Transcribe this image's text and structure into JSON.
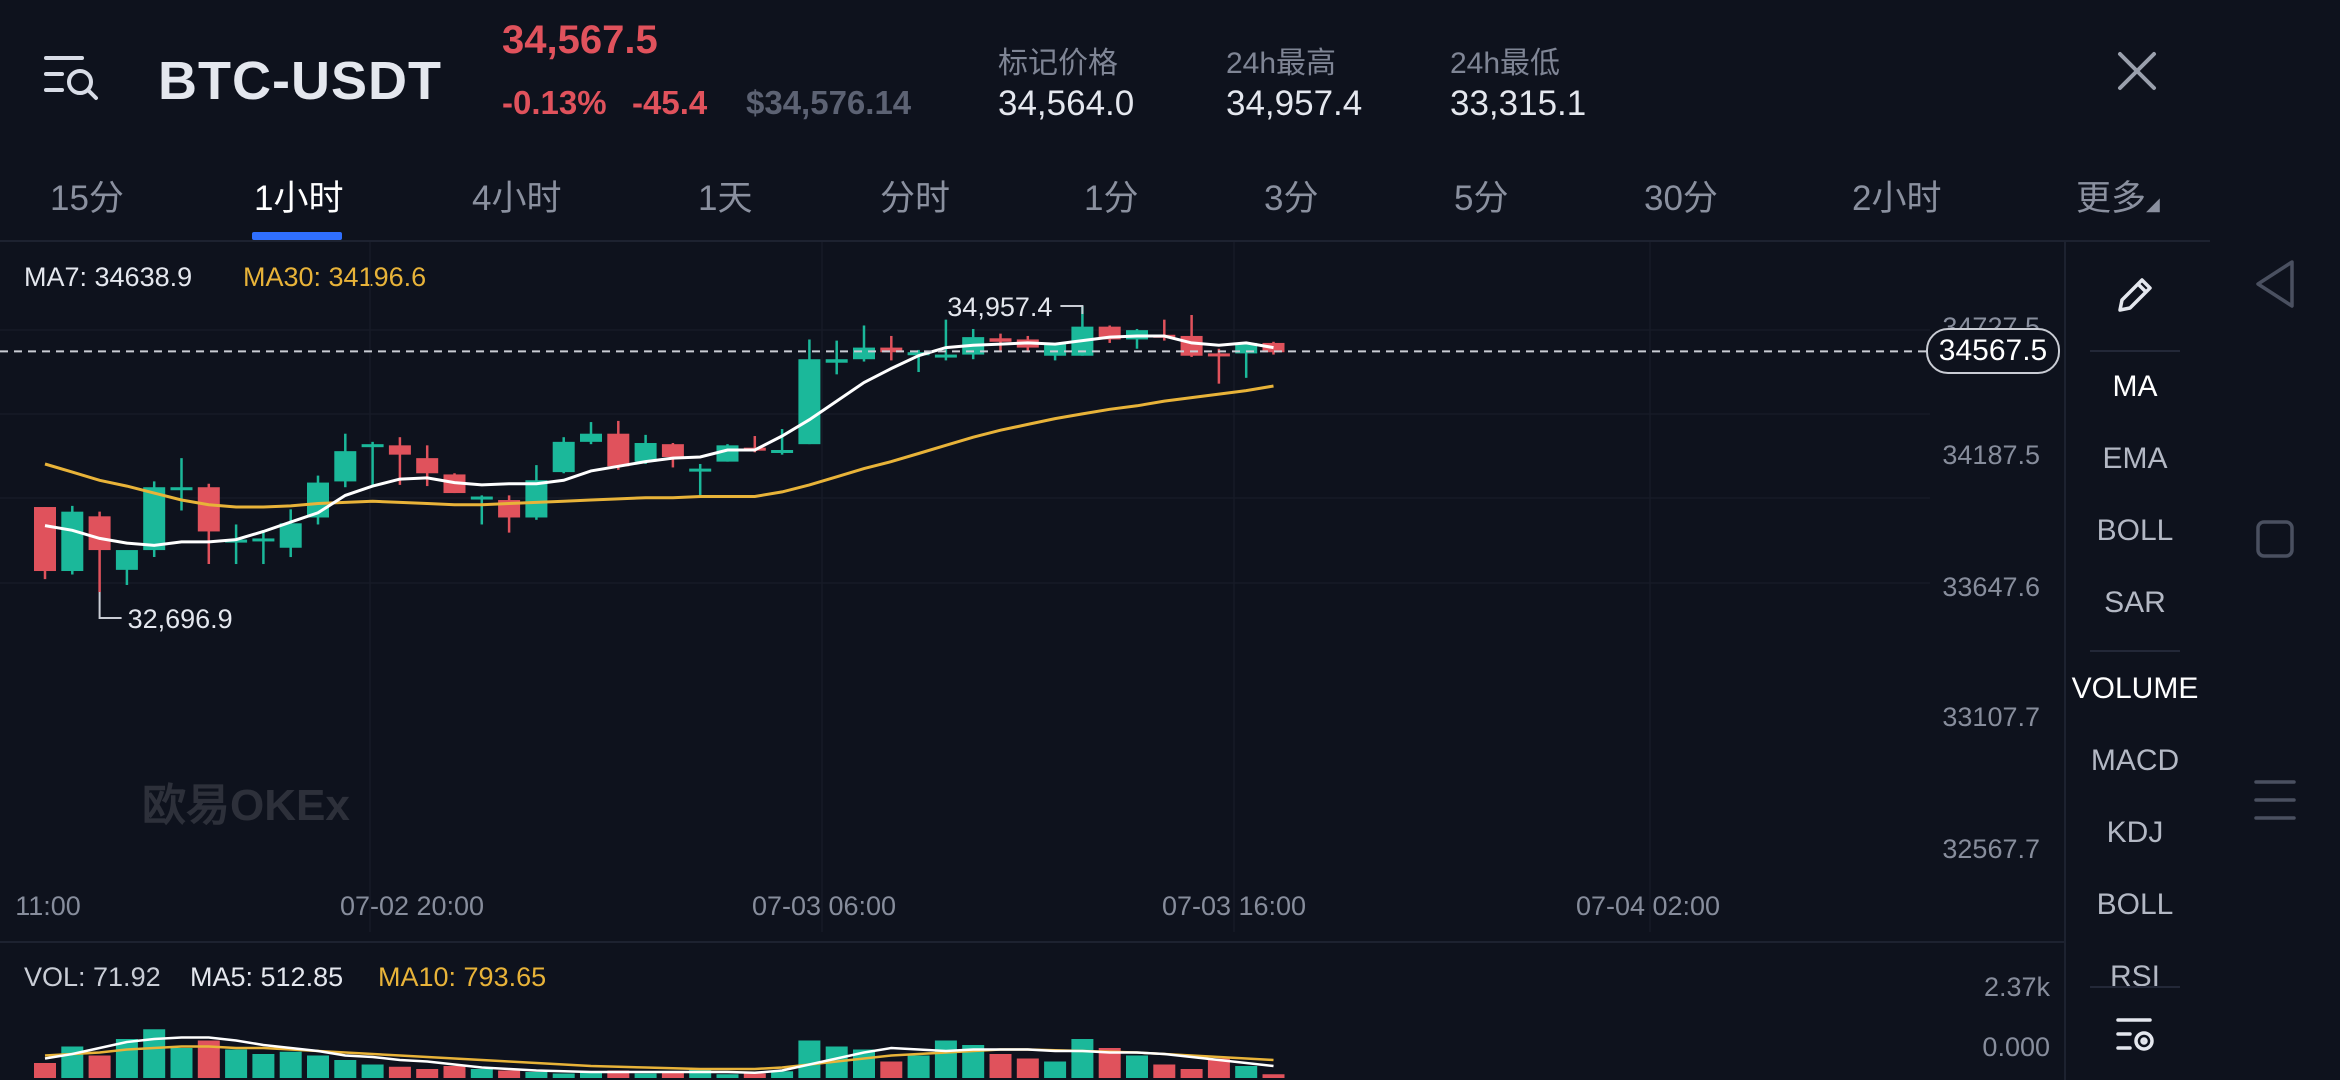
{
  "header": {
    "pair": "BTC-USDT",
    "last_price": "34,567.5",
    "change_pct": "-0.13%",
    "change_abs": "-45.4",
    "usd_price": "$34,576.14",
    "mark_label": "标记价格",
    "mark_value": "34,564.0",
    "high_label": "24h最高",
    "high_value": "34,957.4",
    "low_label": "24h最低",
    "low_value": "33,315.1"
  },
  "tabs": [
    "15分",
    "1小时",
    "4小时",
    "1天",
    "分时",
    "1分",
    "3分",
    "5分",
    "30分",
    "2小时",
    "更多"
  ],
  "active_tab": 1,
  "indicators": {
    "ma7": "MA7: 34638.9",
    "ma30": "MA30: 34196.6",
    "vol": "VOL: 71.92",
    "ma5": "MA5: 512.85",
    "ma10": "MA10: 793.65"
  },
  "chart_data": {
    "type": "candlestick",
    "y_ticks": [
      "34727.5",
      "34187.5",
      "33647.6",
      "33107.7",
      "32567.7"
    ],
    "x_ticks": [
      "11:00",
      "07-02 20:00",
      "07-03 06:00",
      "07-03 16:00",
      "07-04 02:00"
    ],
    "current_price_tag": "34567.5",
    "high_annotation": "34,957.4",
    "low_annotation": "32,696.9",
    "watermark": "欧易OKEx",
    "ylim": [
      32400,
      35150
    ],
    "candles": [
      {
        "o": 33230,
        "h": 33230,
        "l": 32610,
        "c": 32680
      },
      {
        "o": 32680,
        "h": 33240,
        "l": 32650,
        "c": 33190
      },
      {
        "o": 33150,
        "h": 33190,
        "l": 32500,
        "c": 32860
      },
      {
        "o": 32690,
        "h": 32850,
        "l": 32560,
        "c": 32860
      },
      {
        "o": 32860,
        "h": 33450,
        "l": 32800,
        "c": 33400
      },
      {
        "o": 33400,
        "h": 33650,
        "l": 33200,
        "c": 33400
      },
      {
        "o": 33400,
        "h": 33430,
        "l": 32740,
        "c": 33020
      },
      {
        "o": 32930,
        "h": 33080,
        "l": 32740,
        "c": 32950
      },
      {
        "o": 32950,
        "h": 33030,
        "l": 32740,
        "c": 32960
      },
      {
        "o": 32880,
        "h": 33210,
        "l": 32800,
        "c": 33090
      },
      {
        "o": 33140,
        "h": 33500,
        "l": 33080,
        "c": 33440
      },
      {
        "o": 33450,
        "h": 33860,
        "l": 33400,
        "c": 33710
      },
      {
        "o": 33770,
        "h": 33790,
        "l": 33400,
        "c": 33770
      },
      {
        "o": 33760,
        "h": 33830,
        "l": 33420,
        "c": 33680
      },
      {
        "o": 33650,
        "h": 33760,
        "l": 33410,
        "c": 33520
      },
      {
        "o": 33510,
        "h": 33520,
        "l": 33350,
        "c": 33350
      },
      {
        "o": 33310,
        "h": 33330,
        "l": 33080,
        "c": 33320
      },
      {
        "o": 33290,
        "h": 33330,
        "l": 33010,
        "c": 33140
      },
      {
        "o": 33140,
        "h": 33590,
        "l": 33120,
        "c": 33460
      },
      {
        "o": 33530,
        "h": 33830,
        "l": 33520,
        "c": 33790
      },
      {
        "o": 33790,
        "h": 33960,
        "l": 33770,
        "c": 33860
      },
      {
        "o": 33860,
        "h": 33970,
        "l": 33550,
        "c": 33580
      },
      {
        "o": 33620,
        "h": 33850,
        "l": 33600,
        "c": 33780
      },
      {
        "o": 33770,
        "h": 33780,
        "l": 33570,
        "c": 33660
      },
      {
        "o": 33560,
        "h": 33600,
        "l": 33320,
        "c": 33560
      },
      {
        "o": 33620,
        "h": 33770,
        "l": 33620,
        "c": 33760
      },
      {
        "o": 33740,
        "h": 33840,
        "l": 33700,
        "c": 33720
      },
      {
        "o": 33720,
        "h": 33900,
        "l": 33680,
        "c": 33720
      },
      {
        "o": 33770,
        "h": 34670,
        "l": 33770,
        "c": 34500
      },
      {
        "o": 34470,
        "h": 34660,
        "l": 34370,
        "c": 34500
      },
      {
        "o": 34500,
        "h": 34790,
        "l": 34480,
        "c": 34600
      },
      {
        "o": 34600,
        "h": 34700,
        "l": 34490,
        "c": 34560
      },
      {
        "o": 34550,
        "h": 34580,
        "l": 34390,
        "c": 34560
      },
      {
        "o": 34520,
        "h": 34840,
        "l": 34490,
        "c": 34540
      },
      {
        "o": 34540,
        "h": 34760,
        "l": 34500,
        "c": 34690
      },
      {
        "o": 34680,
        "h": 34720,
        "l": 34570,
        "c": 34650
      },
      {
        "o": 34670,
        "h": 34700,
        "l": 34560,
        "c": 34600
      },
      {
        "o": 34530,
        "h": 34630,
        "l": 34490,
        "c": 34630
      },
      {
        "o": 34530,
        "h": 34957,
        "l": 34530,
        "c": 34780
      },
      {
        "o": 34780,
        "h": 34790,
        "l": 34640,
        "c": 34670
      },
      {
        "o": 34670,
        "h": 34760,
        "l": 34590,
        "c": 34750
      },
      {
        "o": 34710,
        "h": 34840,
        "l": 34660,
        "c": 34700
      },
      {
        "o": 34700,
        "h": 34880,
        "l": 34520,
        "c": 34530
      },
      {
        "o": 34550,
        "h": 34590,
        "l": 34290,
        "c": 34540
      },
      {
        "o": 34550,
        "h": 34650,
        "l": 34340,
        "c": 34640
      },
      {
        "o": 34640,
        "h": 34650,
        "l": 34540,
        "c": 34560
      }
    ],
    "ma7": [
      33070,
      33030,
      32960,
      32920,
      32900,
      32930,
      32930,
      32950,
      33020,
      33100,
      33180,
      33330,
      33410,
      33470,
      33480,
      33440,
      33420,
      33430,
      33430,
      33460,
      33540,
      33580,
      33620,
      33650,
      33660,
      33720,
      33720,
      33840,
      33980,
      34140,
      34300,
      34420,
      34530,
      34600,
      34620,
      34630,
      34640,
      34630,
      34660,
      34690,
      34700,
      34700,
      34640,
      34620,
      34640,
      34600
    ],
    "ma30": [
      33600,
      33530,
      33460,
      33410,
      33350,
      33290,
      33250,
      33230,
      33230,
      33240,
      33260,
      33270,
      33280,
      33270,
      33260,
      33250,
      33250,
      33260,
      33270,
      33280,
      33290,
      33300,
      33310,
      33310,
      33320,
      33320,
      33320,
      33360,
      33420,
      33490,
      33560,
      33620,
      33690,
      33760,
      33830,
      33890,
      33940,
      33990,
      34030,
      34070,
      34100,
      34140,
      34170,
      34200,
      34230,
      34270
    ],
    "volume": {
      "ylim_top": "2.37k",
      "zero": "0.000",
      "bars": [
        0.2,
        0.42,
        0.3,
        0.52,
        0.65,
        0.4,
        0.5,
        0.38,
        0.32,
        0.35,
        0.3,
        0.24,
        0.18,
        0.15,
        0.12,
        0.16,
        0.12,
        0.1,
        0.08,
        0.06,
        0.08,
        0.1,
        0.06,
        0.08,
        0.12,
        0.05,
        0.06,
        0.09,
        0.5,
        0.42,
        0.38,
        0.22,
        0.3,
        0.5,
        0.44,
        0.32,
        0.26,
        0.22,
        0.52,
        0.4,
        0.3,
        0.18,
        0.12,
        0.26,
        0.16,
        0.05
      ],
      "ma5": [
        0.26,
        0.32,
        0.4,
        0.48,
        0.52,
        0.54,
        0.54,
        0.5,
        0.44,
        0.4,
        0.36,
        0.3,
        0.28,
        0.24,
        0.22,
        0.18,
        0.14,
        0.12,
        0.1,
        0.09,
        0.08,
        0.08,
        0.08,
        0.08,
        0.08,
        0.08,
        0.07,
        0.1,
        0.18,
        0.26,
        0.34,
        0.4,
        0.38,
        0.36,
        0.38,
        0.38,
        0.38,
        0.36,
        0.36,
        0.34,
        0.34,
        0.32,
        0.28,
        0.24,
        0.2,
        0.16
      ],
      "ma10": [
        0.3,
        0.32,
        0.34,
        0.38,
        0.4,
        0.42,
        0.42,
        0.4,
        0.4,
        0.38,
        0.36,
        0.34,
        0.32,
        0.3,
        0.28,
        0.26,
        0.24,
        0.22,
        0.2,
        0.18,
        0.16,
        0.15,
        0.14,
        0.13,
        0.12,
        0.12,
        0.12,
        0.14,
        0.18,
        0.22,
        0.26,
        0.3,
        0.32,
        0.34,
        0.36,
        0.38,
        0.38,
        0.37,
        0.36,
        0.35,
        0.34,
        0.32,
        0.3,
        0.28,
        0.26,
        0.24
      ]
    }
  },
  "tools": {
    "main": [
      "MA",
      "EMA",
      "BOLL",
      "SAR"
    ],
    "sub": [
      "VOLUME",
      "MACD",
      "KDJ",
      "BOLL",
      "RSI"
    ]
  },
  "icons": {
    "menu": "menu-search-icon",
    "close": "close-icon",
    "edit": "pencil-icon",
    "settings": "indicator-settings-icon",
    "back": "nav-back-icon",
    "home": "nav-home-icon",
    "recents": "nav-recents-icon"
  },
  "colors": {
    "up": "#1bb89a",
    "down": "#e0525c",
    "ma7": "#ffffff",
    "ma30": "#e8b339",
    "accent": "#2f6fff"
  }
}
